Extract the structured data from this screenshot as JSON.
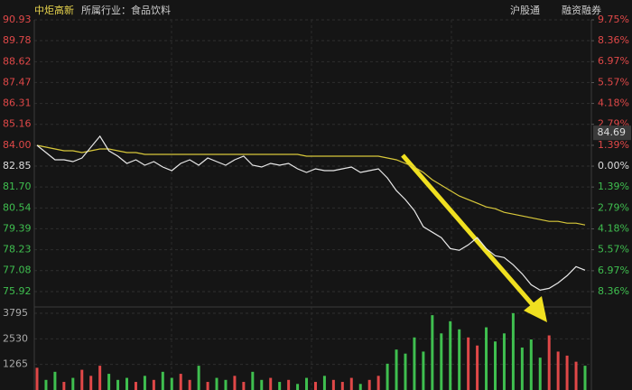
{
  "chart_data": {
    "type": "intraday",
    "stock_name": "中炬高新",
    "industry": "所属行业：食品饮料",
    "tags": [
      "沪股通",
      "融资融券"
    ],
    "price_tag": 84.69,
    "x": [
      0,
      1,
      2,
      3,
      4,
      5,
      6,
      7,
      8,
      9,
      10,
      11,
      12,
      13,
      14,
      15,
      16,
      17,
      18,
      19,
      20,
      21,
      22,
      23,
      24,
      25,
      26,
      27,
      28,
      29,
      30,
      31,
      32,
      33,
      34,
      35,
      36,
      37,
      38,
      39,
      40,
      41,
      42,
      43,
      44,
      45,
      46,
      47,
      48,
      49,
      50,
      51,
      52,
      53,
      54,
      55,
      56,
      57,
      58,
      59,
      60,
      61
    ],
    "xlim": [
      0,
      61
    ],
    "ylim": [
      75.92,
      90.93
    ],
    "yticks": [
      90.93,
      89.78,
      88.62,
      87.47,
      86.31,
      85.16,
      {
        "value": 84.0,
        "label": "84.00"
      },
      82.85,
      {
        "value": 81.7,
        "label": "81.70"
      },
      80.54,
      79.39,
      78.23,
      77.08,
      75.92
    ],
    "y2lim": [
      -8.36,
      9.75
    ],
    "y2ticks": [
      {
        "value": 9.75,
        "label": "9.75%"
      },
      {
        "value": 8.36,
        "label": "8.36%"
      },
      {
        "value": 6.97,
        "label": "6.97%"
      },
      {
        "value": 5.57,
        "label": "5.57%"
      },
      {
        "value": 4.18,
        "label": "4.18%"
      },
      {
        "value": 2.79,
        "label": "2.79%"
      },
      {
        "value": 1.39,
        "label": "1.39%"
      },
      {
        "value": 0,
        "label": "0.00%"
      },
      {
        "value": -1.39,
        "label": "1.39%"
      },
      {
        "value": -2.79,
        "label": "2.79%"
      },
      {
        "value": -4.18,
        "label": "4.18%"
      },
      {
        "value": -5.57,
        "label": "5.57%"
      },
      {
        "value": -6.97,
        "label": "6.97%"
      },
      {
        "value": -8.36,
        "label": "8.36%"
      }
    ],
    "up_color": "#e04848",
    "down_color": "#3fbf4f",
    "series": [
      {
        "name": "price",
        "color": "#e8e8e8",
        "values": [
          84.0,
          83.6,
          83.2,
          83.2,
          83.1,
          83.3,
          83.9,
          84.5,
          83.7,
          83.4,
          83.0,
          83.2,
          82.9,
          83.1,
          82.8,
          82.6,
          83.0,
          83.2,
          82.9,
          83.3,
          83.1,
          82.9,
          83.2,
          83.4,
          82.9,
          82.8,
          83.0,
          82.9,
          83.0,
          82.7,
          82.5,
          82.7,
          82.6,
          82.6,
          82.7,
          82.8,
          82.5,
          82.6,
          82.7,
          82.2,
          81.5,
          81.0,
          80.4,
          79.5,
          79.2,
          78.9,
          78.3,
          78.2,
          78.5,
          78.9,
          78.3,
          77.9,
          77.8,
          77.4,
          76.9,
          76.3,
          76.0,
          76.1,
          76.4,
          76.8,
          77.3,
          77.1
        ]
      },
      {
        "name": "average",
        "color": "#d8c83a",
        "values": [
          84.0,
          83.9,
          83.8,
          83.7,
          83.7,
          83.6,
          83.7,
          83.8,
          83.8,
          83.7,
          83.6,
          83.6,
          83.5,
          83.5,
          83.5,
          83.5,
          83.5,
          83.5,
          83.5,
          83.5,
          83.5,
          83.5,
          83.5,
          83.5,
          83.5,
          83.5,
          83.5,
          83.5,
          83.5,
          83.5,
          83.4,
          83.4,
          83.4,
          83.4,
          83.4,
          83.4,
          83.4,
          83.4,
          83.4,
          83.3,
          83.2,
          83.0,
          82.8,
          82.5,
          82.1,
          81.8,
          81.5,
          81.2,
          81.0,
          80.8,
          80.6,
          80.5,
          80.3,
          80.2,
          80.1,
          80.0,
          79.9,
          79.8,
          79.8,
          79.7,
          79.7,
          79.6
        ]
      }
    ],
    "volume": {
      "ylim": [
        0,
        3795
      ],
      "yticks": [
        3795,
        2530,
        1265
      ],
      "values": [
        1100,
        500,
        900,
        400,
        600,
        1000,
        700,
        1200,
        800,
        500,
        600,
        400,
        700,
        500,
        900,
        600,
        800,
        500,
        1200,
        400,
        600,
        500,
        700,
        400,
        900,
        500,
        600,
        400,
        500,
        300,
        600,
        400,
        700,
        500,
        400,
        600,
        300,
        500,
        700,
        1300,
        2000,
        1800,
        2600,
        1900,
        3700,
        2800,
        3400,
        3000,
        2600,
        2200,
        3100,
        2400,
        2800,
        3800,
        2100,
        2500,
        1600,
        2700,
        1900,
        1700,
        1400,
        1200
      ]
    }
  }
}
